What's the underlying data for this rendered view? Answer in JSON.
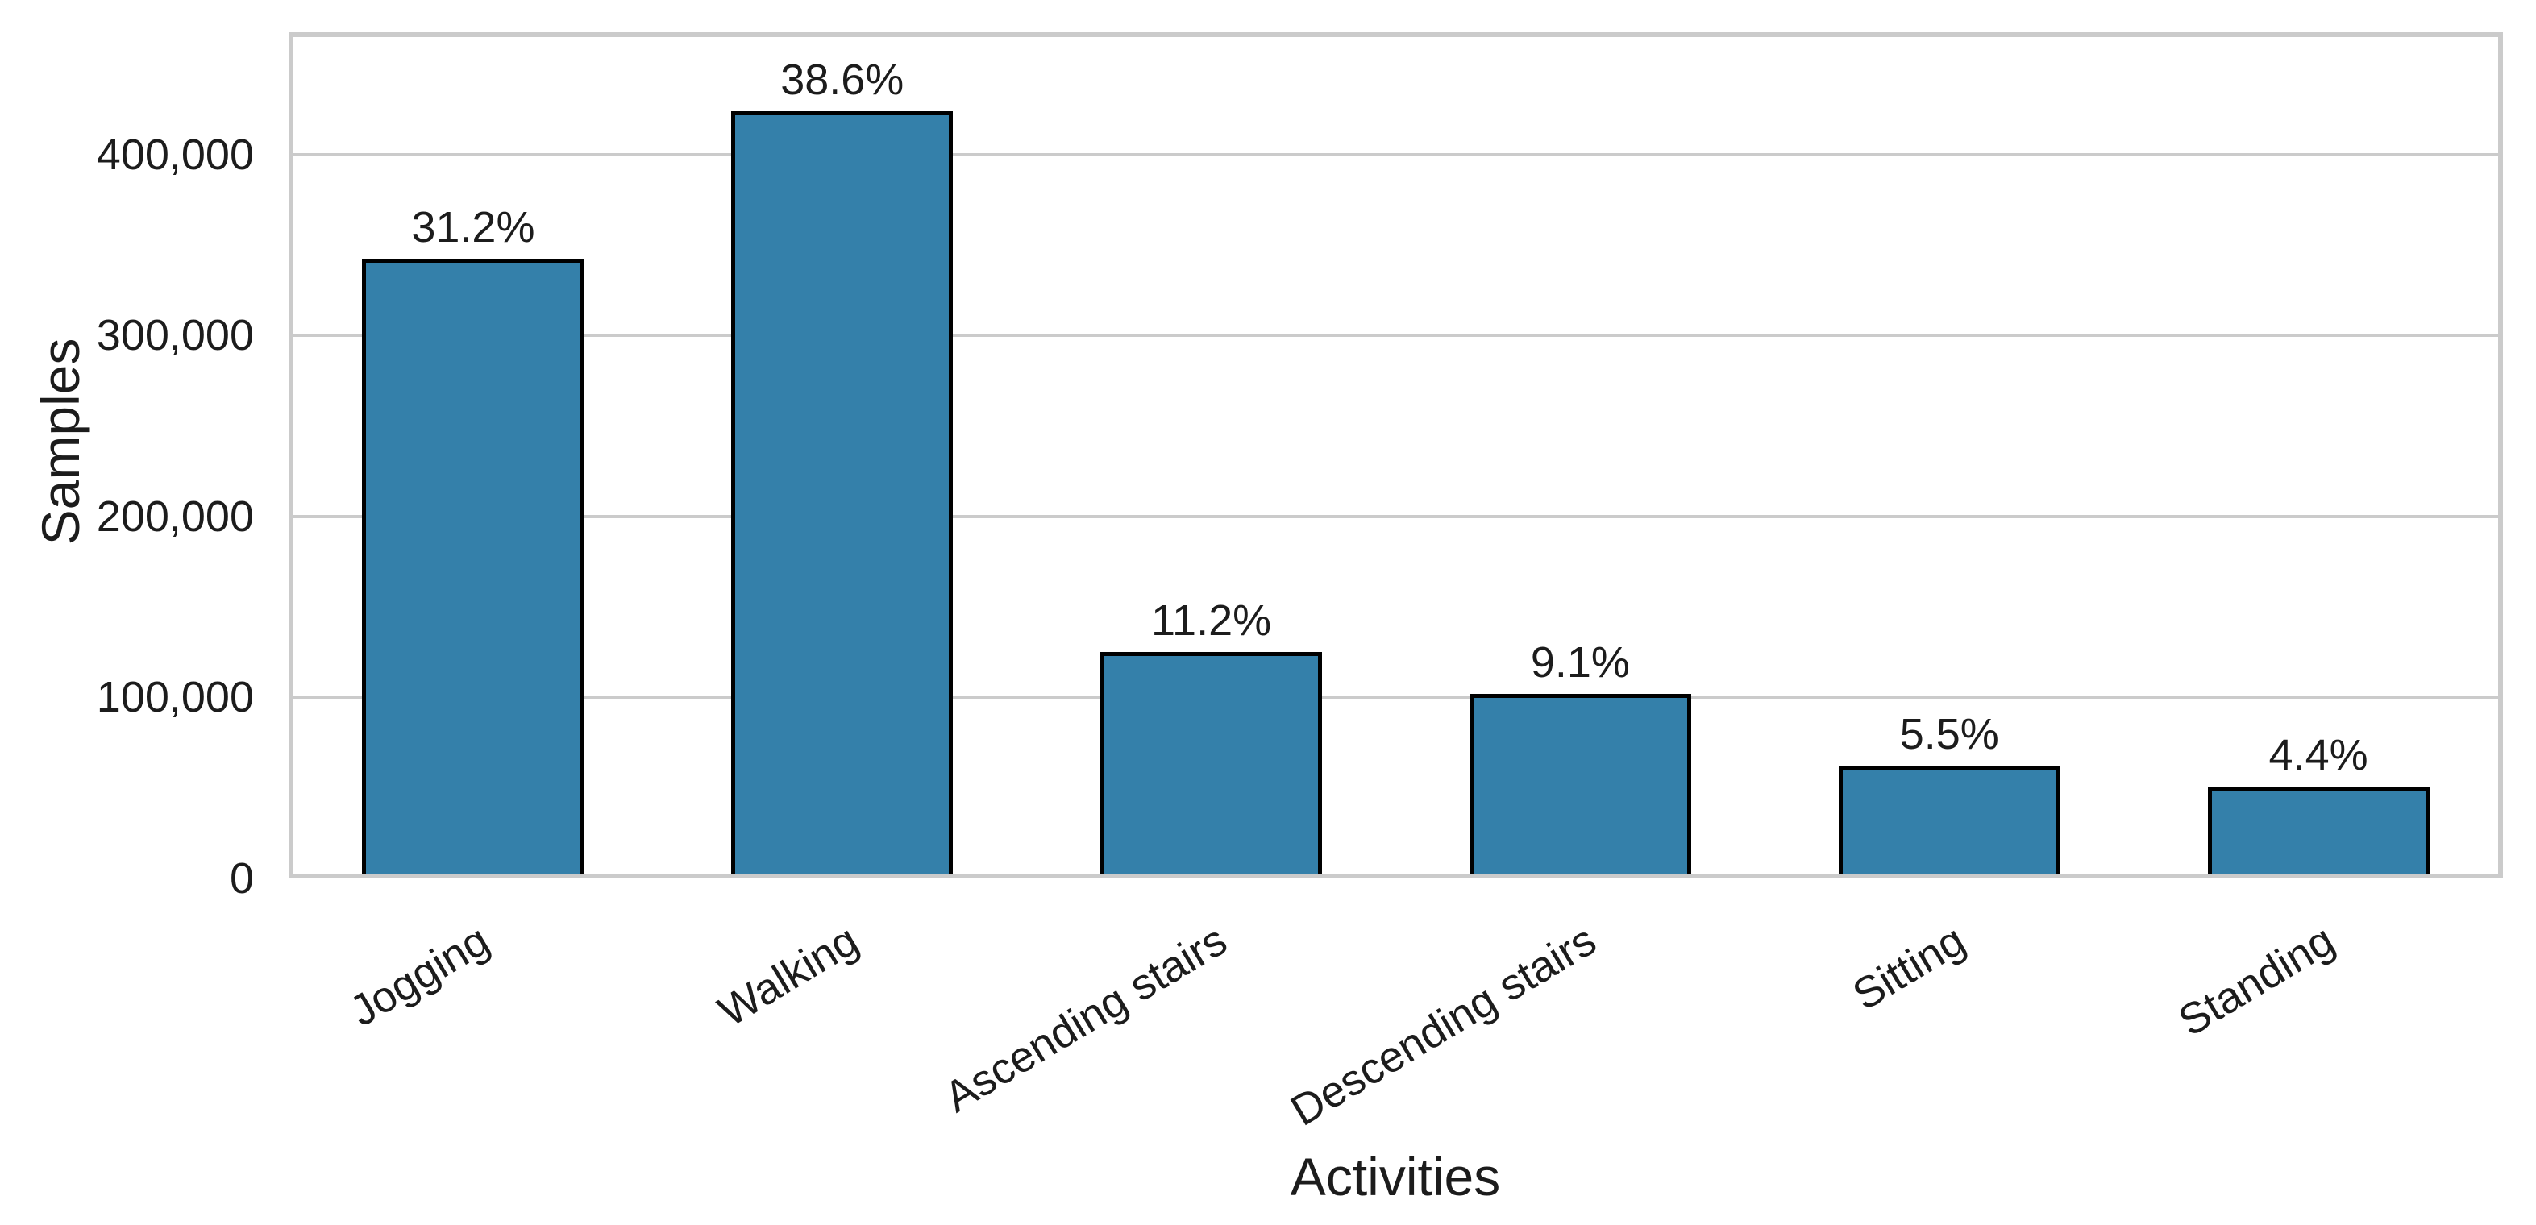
{
  "chart_data": {
    "type": "bar",
    "title": "",
    "xlabel": "Activities",
    "ylabel": "Samples",
    "categories": [
      "Jogging",
      "Walking",
      "Ascending stairs",
      "Descending stairs",
      "Sitting",
      "Standing"
    ],
    "values": [
      342000,
      424000,
      123000,
      100000,
      60000,
      48500
    ],
    "bar_labels": [
      "31.2%",
      "38.6%",
      "11.2%",
      "9.1%",
      "5.5%",
      "4.4%"
    ],
    "ylim": [
      0,
      467700
    ],
    "yticks": [
      0,
      100000,
      200000,
      300000,
      400000
    ],
    "ytick_labels": [
      "0",
      "100,000",
      "200,000",
      "300,000",
      "400,000"
    ],
    "grid": "horizontal-only",
    "legend_position": "none",
    "x_tick_rotation_deg": 31,
    "colors": {
      "bar_fill": "#3480aa",
      "bar_edge": "#000000",
      "grid": "#cbcbcb",
      "spine": "#cbcbcb",
      "text": "#1c1c1c",
      "background": "#ffffff"
    }
  }
}
